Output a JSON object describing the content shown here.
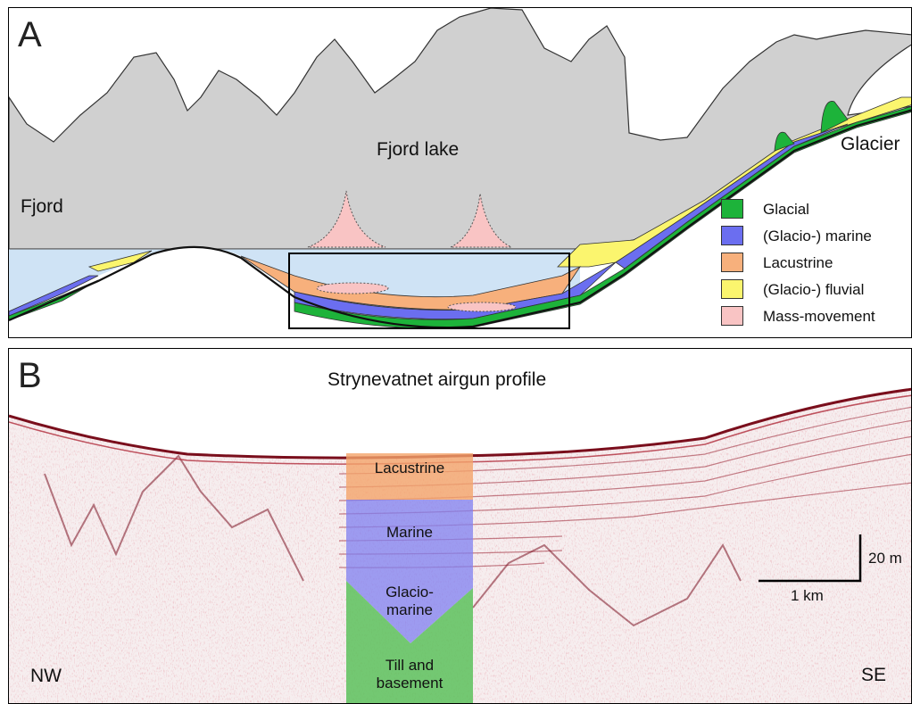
{
  "panel_a": {
    "label": "A",
    "fjord_label": "Fjord",
    "lake_label": "Fjord lake",
    "glacier_label": "Glacier",
    "legend": [
      {
        "label": "Glacial",
        "color": "#1db33a"
      },
      {
        "label": "(Glacio-) marine",
        "color": "#6b6ef0"
      },
      {
        "label": "Lacustrine",
        "color": "#f7b07c"
      },
      {
        "label": "(Glacio-) fluvial",
        "color": "#fbf56e"
      },
      {
        "label": "Mass-movement",
        "color": "#f9c4c4"
      }
    ]
  },
  "panel_b": {
    "label": "B",
    "title": "Strynevatnet airgun profile",
    "units": [
      {
        "label": "Lacustrine",
        "color": "#f4a46a"
      },
      {
        "label": "Marine",
        "color": "#7f7ff0"
      },
      {
        "label": "Glacio-\nmarine",
        "color": "#7f7ff0"
      },
      {
        "label": "Till and\nbasement",
        "color": "#5cc15c"
      }
    ],
    "nw_label": "NW",
    "se_label": "SE",
    "scale_vertical": "20 m",
    "scale_horizontal": "1 km"
  }
}
